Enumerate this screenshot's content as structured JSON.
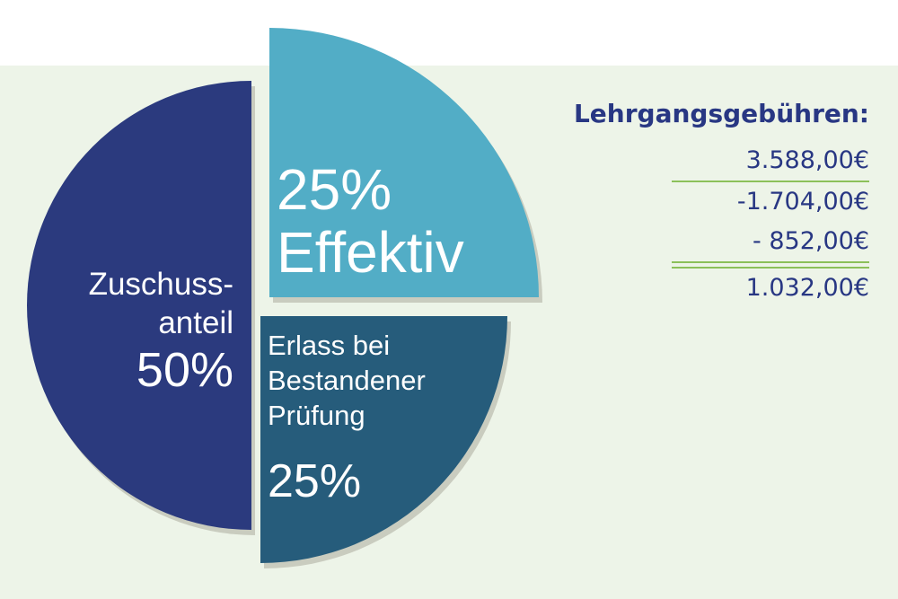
{
  "chart_data": {
    "type": "pie",
    "slices": [
      {
        "label_lines": [
          "Zuschuss-",
          "anteil"
        ],
        "value_label": "50%",
        "value": 50,
        "color": "#2b3a7e"
      },
      {
        "label_lines": [
          "Effektiv"
        ],
        "value_label": "25%",
        "value": 25,
        "color": "#52adc6"
      },
      {
        "label_lines": [
          "Erlass bei",
          "Bestandener",
          "Prüfung"
        ],
        "value_label": "25%",
        "value": 25,
        "color": "#265c7b"
      }
    ]
  },
  "fees": {
    "title": "Lehrgangsgebühren:",
    "rows": [
      "3.588,00€",
      "-1.704,00€",
      "-   852,00€",
      "1.032,00€"
    ]
  },
  "colors": {
    "panel_bg": "#edf4e8",
    "text_dark": "#283783",
    "rule": "#8cc05a",
    "shadow": "#c9ccbf"
  }
}
